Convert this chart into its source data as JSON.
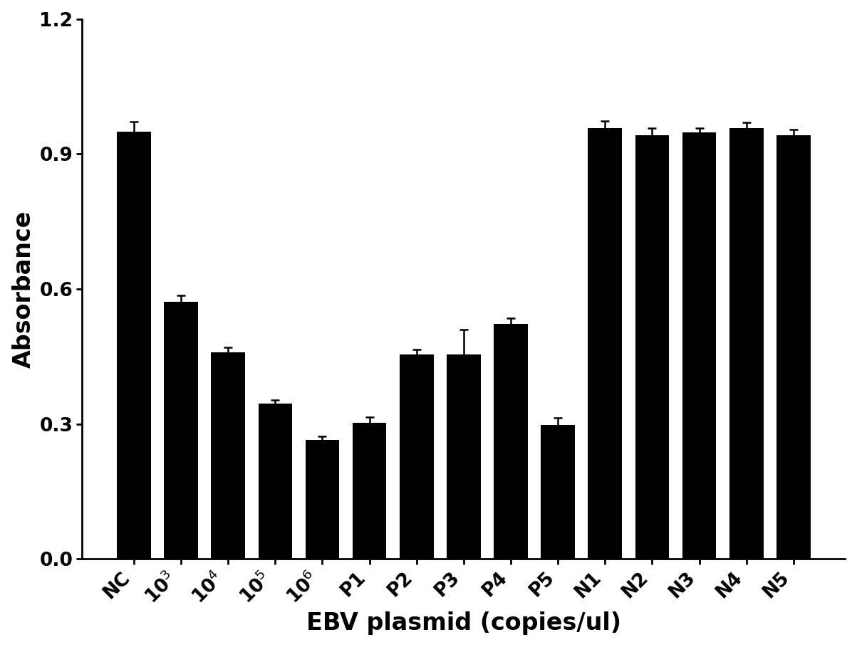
{
  "categories": [
    "NC",
    "10^3",
    "10^4",
    "10^5",
    "10^6",
    "P1",
    "P2",
    "P3",
    "P4",
    "P5",
    "N1",
    "N2",
    "N3",
    "N4",
    "N5"
  ],
  "cat_labels": [
    "NC",
    "10$^3$",
    "10$^4$",
    "10$^5$",
    "10$^6$",
    "P1",
    "P2",
    "P3",
    "P4",
    "P5",
    "N1",
    "N2",
    "N3",
    "N4",
    "N5"
  ],
  "values": [
    0.95,
    0.572,
    0.46,
    0.345,
    0.265,
    0.303,
    0.455,
    0.455,
    0.522,
    0.298,
    0.958,
    0.942,
    0.948,
    0.958,
    0.942
  ],
  "errors": [
    0.022,
    0.013,
    0.01,
    0.008,
    0.007,
    0.012,
    0.01,
    0.055,
    0.013,
    0.015,
    0.015,
    0.015,
    0.01,
    0.012,
    0.012
  ],
  "bar_color": "#000000",
  "error_color": "#000000",
  "ylabel": "Absorbance",
  "xlabel": "EBV plasmid (copies/ul)",
  "ylim": [
    0.0,
    1.2
  ],
  "yticks": [
    0.0,
    0.3,
    0.6,
    0.9,
    1.2
  ],
  "background_color": "#ffffff",
  "bar_width": 0.72,
  "ylabel_fontsize": 24,
  "xlabel_fontsize": 24,
  "tick_fontsize": 19,
  "xlabel_fontweight": "bold",
  "ylabel_fontweight": "bold"
}
